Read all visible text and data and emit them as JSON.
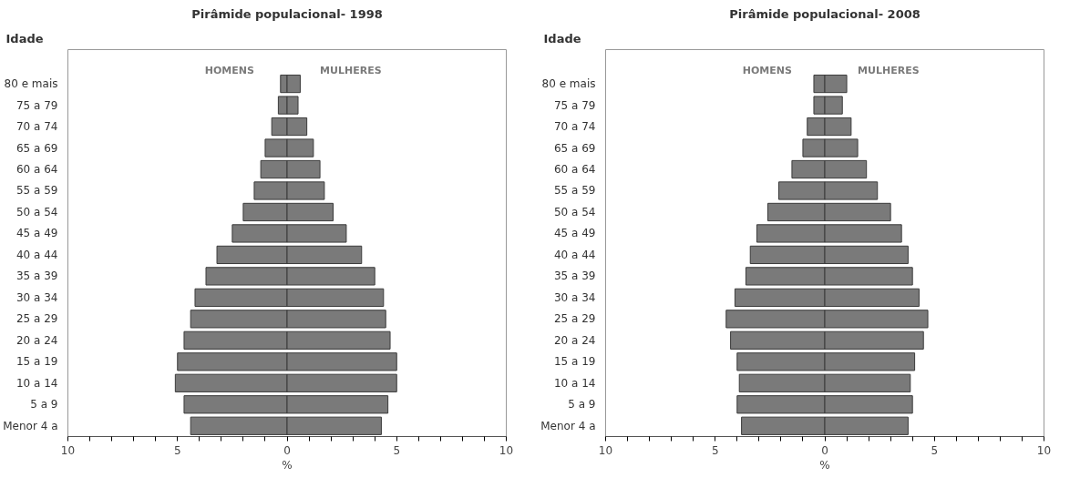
{
  "chart_data": [
    {
      "type": "bar",
      "orientation": "horizontal",
      "stacked": true,
      "title": "Pirâmide populacional- 1998",
      "ylabel": "Idade",
      "xlabel": "%",
      "categories": [
        "80 e mais",
        "75 a 79",
        "70 a 74",
        "65 a 69",
        "60 a 64",
        "55 a 59",
        "50 a 54",
        "45 a 49",
        "40 a 44",
        "35 a 39",
        "30 a 34",
        "25 a 29",
        "20 a 24",
        "15 a 19",
        "10 a 14",
        "5 a 9",
        "Menor 4 a"
      ],
      "series": [
        {
          "name": "HOMENS",
          "color": "#7a7a7a",
          "values": [
            -0.3,
            -0.4,
            -0.7,
            -1.0,
            -1.2,
            -1.5,
            -2.0,
            -2.5,
            -3.2,
            -3.7,
            -4.2,
            -4.4,
            -4.7,
            -5.0,
            -5.1,
            -4.7,
            -4.4
          ]
        },
        {
          "name": "MULHERES",
          "color": "#7a7a7a",
          "values": [
            0.6,
            0.5,
            0.9,
            1.2,
            1.5,
            1.7,
            2.1,
            2.7,
            3.4,
            4.0,
            4.4,
            4.5,
            4.7,
            5.0,
            5.0,
            4.6,
            4.3
          ]
        }
      ],
      "xlim": [
        -10,
        10
      ],
      "xticks": [
        {
          "value": -10,
          "label": "10"
        },
        {
          "value": -9,
          "label": null
        },
        {
          "value": -8,
          "label": null
        },
        {
          "value": -7,
          "label": null
        },
        {
          "value": -6,
          "label": null
        },
        {
          "value": -5,
          "label": "5"
        },
        {
          "value": -4,
          "label": null
        },
        {
          "value": -3,
          "label": null
        },
        {
          "value": -2,
          "label": null
        },
        {
          "value": -1,
          "label": null
        },
        0,
        {
          "value": 1,
          "label": null
        },
        {
          "value": 2,
          "label": null
        },
        {
          "value": 3,
          "label": null
        },
        {
          "value": 4,
          "label": null
        },
        5,
        {
          "value": 6,
          "label": null
        },
        {
          "value": 7,
          "label": null
        },
        {
          "value": 8,
          "label": null
        },
        {
          "value": 9,
          "label": null
        },
        10
      ],
      "grid": false
    },
    {
      "type": "bar",
      "orientation": "horizontal",
      "stacked": true,
      "title": "Pirâmide populacional- 2008",
      "ylabel": "Idade",
      "xlabel": "%",
      "categories": [
        "80 e mais",
        "75 a 79",
        "70 a 74",
        "65 a 69",
        "60 a 64",
        "55 a 59",
        "50 a 54",
        "45 a 49",
        "40 a 44",
        "35 a 39",
        "30 a 34",
        "25 a 29",
        "20 a 24",
        "15 a 19",
        "10 a 14",
        "5 a 9",
        "Menor 4 a"
      ],
      "series": [
        {
          "name": "HOMENS",
          "color": "#7a7a7a",
          "values": [
            -0.5,
            -0.5,
            -0.8,
            -1.0,
            -1.5,
            -2.1,
            -2.6,
            -3.1,
            -3.4,
            -3.6,
            -4.1,
            -4.5,
            -4.3,
            -4.0,
            -3.9,
            -4.0,
            -3.8
          ]
        },
        {
          "name": "MULHERES",
          "color": "#7a7a7a",
          "values": [
            1.0,
            0.8,
            1.2,
            1.5,
            1.9,
            2.4,
            3.0,
            3.5,
            3.8,
            4.0,
            4.3,
            4.7,
            4.5,
            4.1,
            3.9,
            4.0,
            3.8
          ]
        }
      ],
      "xlim": [
        -10,
        10
      ],
      "xticks": [
        {
          "value": -10,
          "label": "10"
        },
        {
          "value": -9,
          "label": null
        },
        {
          "value": -8,
          "label": null
        },
        {
          "value": -7,
          "label": null
        },
        {
          "value": -6,
          "label": null
        },
        {
          "value": -5,
          "label": "5"
        },
        {
          "value": -4,
          "label": null
        },
        {
          "value": -3,
          "label": null
        },
        {
          "value": -2,
          "label": null
        },
        {
          "value": -1,
          "label": null
        },
        0,
        {
          "value": 1,
          "label": null
        },
        {
          "value": 2,
          "label": null
        },
        {
          "value": 3,
          "label": null
        },
        {
          "value": 4,
          "label": null
        },
        5,
        {
          "value": 6,
          "label": null
        },
        {
          "value": 7,
          "label": null
        },
        {
          "value": 8,
          "label": null
        },
        {
          "value": 9,
          "label": null
        },
        10
      ],
      "grid": false
    }
  ]
}
